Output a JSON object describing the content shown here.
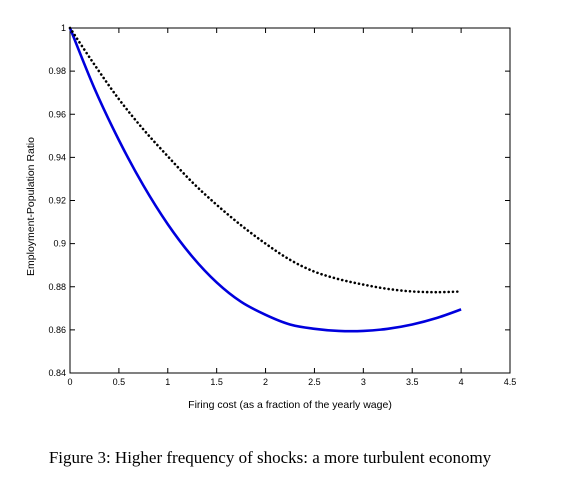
{
  "caption": "Figure 3: Higher frequency of shocks: a more turbulent economy",
  "chart_data": {
    "type": "line",
    "xlabel": "Firing cost (as a fraction of the yearly wage)",
    "ylabel": "Employment-Population Ratio",
    "xlim": [
      0,
      4.5
    ],
    "ylim": [
      0.84,
      1.0
    ],
    "xticks": [
      0,
      0.5,
      1,
      1.5,
      2,
      2.5,
      3,
      3.5,
      4,
      4.5
    ],
    "xtick_labels": [
      "0",
      "0.5",
      "1",
      "1.5",
      "2",
      "2.5",
      "3",
      "3.5",
      "4",
      "4.5"
    ],
    "yticks": [
      0.84,
      0.86,
      0.88,
      0.9,
      0.92,
      0.94,
      0.96,
      0.98,
      1.0
    ],
    "ytick_labels": [
      "0.84",
      "0.86",
      "0.88",
      "0.9",
      "0.92",
      "0.94",
      "0.96",
      "0.98",
      "1"
    ],
    "grid": false,
    "series": [
      {
        "style": "solid",
        "color": "#0000dd",
        "x": [
          0,
          0.25,
          0.5,
          0.75,
          1.0,
          1.25,
          1.5,
          1.75,
          2.0,
          2.25,
          2.5,
          2.75,
          3.0,
          3.25,
          3.5,
          3.75,
          4.0
        ],
        "y": [
          1.0,
          0.972,
          0.948,
          0.927,
          0.909,
          0.894,
          0.882,
          0.873,
          0.867,
          0.8625,
          0.8605,
          0.8595,
          0.8595,
          0.8605,
          0.8625,
          0.8655,
          0.8695
        ]
      },
      {
        "style": "dotted",
        "color": "#000000",
        "x": [
          0,
          0.25,
          0.5,
          0.75,
          1.0,
          1.25,
          1.5,
          1.75,
          2.0,
          2.25,
          2.5,
          2.75,
          3.0,
          3.25,
          3.5,
          3.75,
          4.0
        ],
        "y": [
          1.0,
          0.983,
          0.967,
          0.953,
          0.9405,
          0.9285,
          0.918,
          0.9085,
          0.9,
          0.8925,
          0.887,
          0.8835,
          0.881,
          0.879,
          0.8778,
          0.8775,
          0.8778
        ]
      }
    ]
  }
}
